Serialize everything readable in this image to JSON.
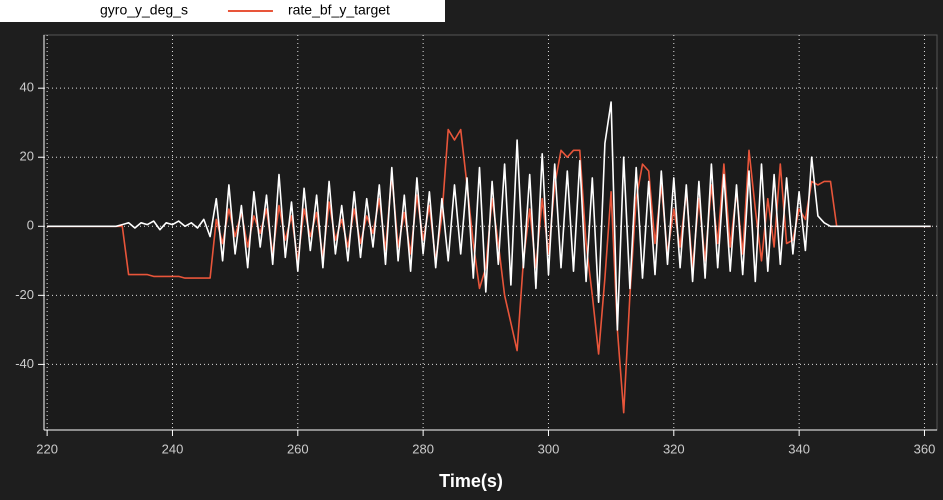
{
  "chart_data": {
    "type": "line",
    "x_label": "Time(s)",
    "x": [
      220,
      221,
      222,
      223,
      224,
      225,
      226,
      227,
      228,
      229,
      230,
      231,
      232,
      233,
      234,
      235,
      236,
      237,
      238,
      239,
      240,
      241,
      242,
      243,
      244,
      245,
      246,
      247,
      248,
      249,
      250,
      251,
      252,
      253,
      254,
      255,
      256,
      257,
      258,
      259,
      260,
      261,
      262,
      263,
      264,
      265,
      266,
      267,
      268,
      269,
      270,
      271,
      272,
      273,
      274,
      275,
      276,
      277,
      278,
      279,
      280,
      281,
      282,
      283,
      284,
      285,
      286,
      287,
      288,
      289,
      290,
      291,
      292,
      293,
      294,
      295,
      296,
      297,
      298,
      299,
      300,
      301,
      302,
      303,
      304,
      305,
      306,
      307,
      308,
      309,
      310,
      311,
      312,
      313,
      314,
      315,
      316,
      317,
      318,
      319,
      320,
      321,
      322,
      323,
      324,
      325,
      326,
      327,
      328,
      329,
      330,
      331,
      332,
      333,
      334,
      335,
      336,
      337,
      338,
      339,
      340,
      341,
      342,
      343,
      344,
      345,
      346,
      347,
      348,
      349,
      350,
      351,
      352,
      353,
      354,
      355,
      356,
      357,
      358,
      359,
      360,
      361
    ],
    "series": [
      {
        "name": "gyro_y_deg_s",
        "color": "#ffffff",
        "values": [
          0,
          0,
          0,
          0,
          0,
          0,
          0,
          0,
          0,
          0,
          0,
          0,
          0.5,
          1,
          -0.5,
          1,
          0.5,
          1.5,
          -1,
          1,
          0.5,
          1.5,
          0,
          1,
          -0.5,
          2,
          -3,
          8,
          -10,
          12,
          -8,
          6,
          -12,
          10,
          -6,
          9,
          -11,
          15,
          -9,
          7,
          -13,
          11,
          -7,
          9,
          -12,
          13,
          -8,
          6,
          -10,
          10,
          -9,
          8,
          -6,
          12,
          -11,
          17,
          -10,
          9,
          -13,
          14,
          -8,
          10,
          -12,
          8,
          -10,
          12,
          -8,
          14,
          -15,
          17,
          -19,
          13,
          -11,
          18,
          -17,
          25,
          -12,
          15,
          -18,
          21,
          -14,
          18,
          -12,
          16,
          -13,
          19,
          -16,
          14,
          -22,
          24,
          36,
          -30,
          20,
          -18,
          17,
          -15,
          13,
          -14,
          16,
          -11,
          14,
          -12,
          12,
          -16,
          13,
          -15,
          18,
          -12,
          15,
          -13,
          12,
          -14,
          16,
          -16,
          18,
          -13,
          15,
          -11,
          14,
          -8,
          10,
          -7,
          20,
          3,
          1,
          0,
          0,
          0,
          0,
          0,
          0,
          0,
          0,
          0,
          0,
          0,
          0,
          0,
          0,
          0,
          0,
          0
        ]
      },
      {
        "name": "rate_bf_y_target",
        "color": "#e8553a",
        "values": [
          0,
          0,
          0,
          0,
          0,
          0,
          0,
          0,
          0,
          0,
          0,
          0,
          0,
          -14,
          -14,
          -14,
          -14,
          -14.5,
          -14.5,
          -14.5,
          -14.5,
          -14.5,
          -15,
          -15,
          -15,
          -15,
          -15,
          2,
          -5,
          5,
          -3,
          4,
          -6,
          3,
          -2,
          5,
          -8,
          6,
          -4,
          3,
          -10,
          5,
          -3,
          4,
          -9,
          7,
          -4,
          2,
          -6,
          5,
          -5,
          3,
          -2,
          8,
          -7,
          15,
          -6,
          4,
          -8,
          9,
          -4,
          6,
          -10,
          3,
          28,
          25,
          28,
          12,
          -5,
          -18,
          -12,
          8,
          -5,
          -20,
          -28,
          -36,
          -10,
          5,
          -12,
          8,
          -8,
          12,
          22,
          20,
          22,
          22,
          -5,
          -20,
          -37,
          -15,
          10,
          -30,
          -54,
          -20,
          8,
          18,
          16,
          -5,
          12,
          -8,
          5,
          -6,
          10,
          -12,
          8,
          -10,
          12,
          -5,
          18,
          -6,
          10,
          -8,
          22,
          5,
          -10,
          8,
          -6,
          18,
          -5,
          -4,
          5,
          2,
          13,
          12,
          13,
          13,
          0,
          0,
          0,
          0,
          0,
          0,
          0,
          0,
          0,
          0,
          0,
          0,
          0,
          0,
          0,
          0
        ]
      }
    ],
    "xlim": [
      219.5,
      362
    ],
    "ylim": [
      -59,
      55.4
    ],
    "xticks": [
      220,
      240,
      260,
      280,
      300,
      320,
      340,
      360
    ],
    "yticks": [
      -40,
      -20,
      0,
      20,
      40
    ],
    "grid": true,
    "legend": "top-left"
  }
}
